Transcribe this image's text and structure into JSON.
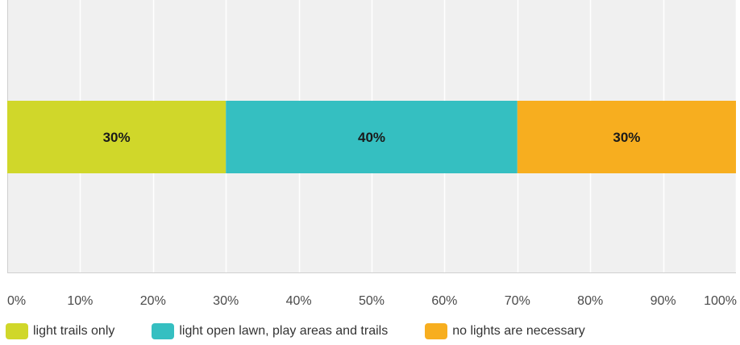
{
  "chart_data": {
    "type": "bar",
    "orientation": "horizontal",
    "stacked": true,
    "categories": [
      ""
    ],
    "series": [
      {
        "name": "light trails only",
        "values": [
          30
        ],
        "label": "30%",
        "color": "#d0d72a"
      },
      {
        "name": "light open lawn, play areas and trails",
        "values": [
          40
        ],
        "label": "40%",
        "color": "#35bfc1"
      },
      {
        "name": "no lights are necessary",
        "values": [
          30
        ],
        "label": "30%",
        "color": "#f7ae1f"
      }
    ],
    "x_ticks": [
      "0%",
      "10%",
      "20%",
      "30%",
      "40%",
      "50%",
      "60%",
      "70%",
      "80%",
      "90%",
      "100%"
    ],
    "xlim": [
      0,
      100
    ],
    "grid": true,
    "legend_position": "bottom-left",
    "background": "#f0f0f0"
  }
}
